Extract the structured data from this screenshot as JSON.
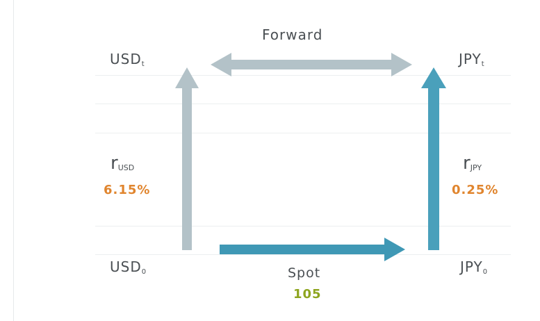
{
  "colors": {
    "usd_arrow": "#b3c2c8",
    "jpy_arrow": "#4aa0bb",
    "forward_arrow": "#b3c2c8",
    "spot_arrow": "#3f98b5",
    "rate_value": "#e0852e",
    "spot_value": "#8ea51f",
    "label_text": "#4a4f53"
  },
  "corners": {
    "top_left": {
      "base": "USD",
      "sub": "t"
    },
    "top_right": {
      "base": "JPY",
      "sub": "t"
    },
    "bottom_left": {
      "base": "USD",
      "sub": "0"
    },
    "bottom_right": {
      "base": "JPY",
      "sub": "0"
    }
  },
  "forward": {
    "label": "Forward"
  },
  "spot": {
    "label": "Spot",
    "value": "105"
  },
  "rates": {
    "usd": {
      "symbol": "r",
      "sub": "USD",
      "value": "6.15%"
    },
    "jpy": {
      "symbol": "r",
      "sub": "JPY",
      "value": "0.25%"
    }
  }
}
